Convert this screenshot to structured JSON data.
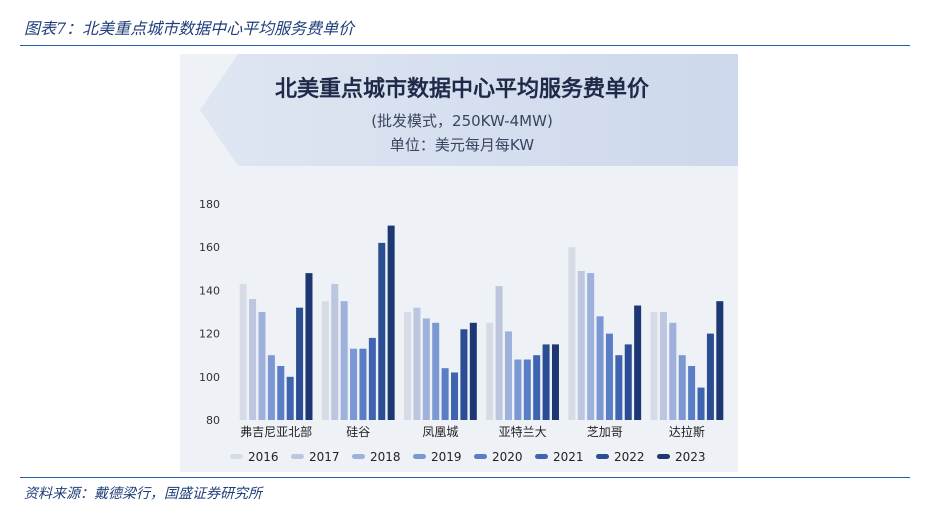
{
  "figure_title": "图表7：北美重点城市数据中心平均服务费单价",
  "source_text": "资料来源：戴德梁行，国盛证券研究所",
  "chart_data": {
    "type": "bar",
    "title": "北美重点城市数据中心平均服务费单价",
    "subtitle_lines": [
      "(批发模式，250KW-4MW)",
      "单位：美元每月每KW"
    ],
    "categories": [
      "弗吉尼亚北部",
      "硅谷",
      "凤凰城",
      "亚特兰大",
      "芝加哥",
      "达拉斯"
    ],
    "series": [
      {
        "name": "2016",
        "color": "#d6dbe6",
        "values": [
          143,
          135,
          130,
          125,
          160,
          130
        ]
      },
      {
        "name": "2017",
        "color": "#bcc7df",
        "values": [
          136,
          143,
          132,
          142,
          149,
          130
        ]
      },
      {
        "name": "2018",
        "color": "#9db1dc",
        "values": [
          130,
          135,
          127,
          121,
          148,
          125
        ]
      },
      {
        "name": "2019",
        "color": "#7b98d3",
        "values": [
          110,
          113,
          125,
          108,
          128,
          110
        ]
      },
      {
        "name": "2020",
        "color": "#5a7ec6",
        "values": [
          105,
          113,
          104,
          108,
          120,
          105
        ]
      },
      {
        "name": "2021",
        "color": "#3e64b0",
        "values": [
          100,
          118,
          102,
          110,
          110,
          95
        ]
      },
      {
        "name": "2022",
        "color": "#2b4d94",
        "values": [
          132,
          162,
          122,
          115,
          115,
          120
        ]
      },
      {
        "name": "2023",
        "color": "#1c3772",
        "values": [
          148,
          170,
          125,
          115,
          133,
          135
        ]
      }
    ],
    "yticks": [
      80,
      100,
      120,
      140,
      160,
      180
    ],
    "ylim": [
      80,
      180
    ],
    "legend_position": "bottom",
    "grid": false
  }
}
